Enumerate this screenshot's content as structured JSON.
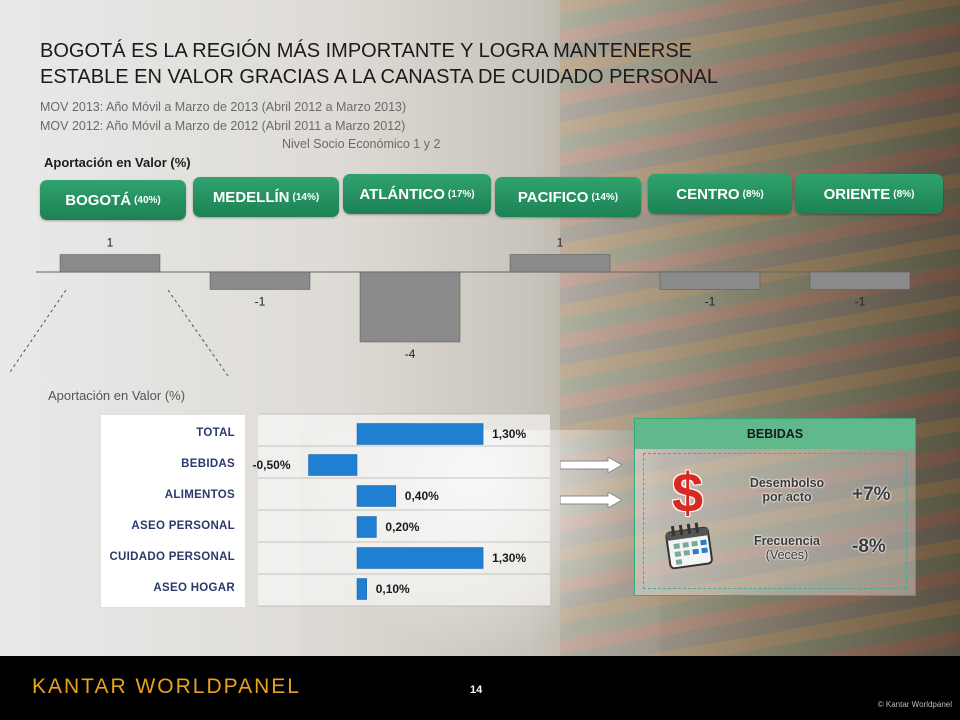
{
  "slide": {
    "title_line1": "BOGOTÁ ES LA REGIÓN MÁS IMPORTANTE Y LOGRA MANTENERSE",
    "title_line2": "ESTABLE EN VALOR GRACIAS A LA CANASTA DE CUIDADO PERSONAL",
    "subtitle_1": "MOV 2013: Año Móvil a Marzo de 2013 (Abril 2012 a Marzo 2013)",
    "subtitle_2": "MOV 2012: Año Móvil a Marzo de 2012 (Abril 2011 a Marzo 2012)",
    "subtitle_3": "Nivel Socio Económico 1 y 2",
    "page_number": "14",
    "logo": "KANTAR WORLDPANEL",
    "copyright": "© Kantar Worldpanel"
  },
  "chart_data": [
    {
      "type": "bar",
      "ylabel": "Aportación en Valor (%)",
      "categories": [
        "BOGOTÁ",
        "MEDELLÍN",
        "ATLÁNTICO",
        "PACIFICO",
        "CENTRO",
        "ORIENTE"
      ],
      "category_shares": [
        "(40%)",
        "(14%)",
        "(17%)",
        "(14%)",
        "(8%)",
        "(8%)"
      ],
      "values": [
        1,
        -1,
        -4,
        1,
        -1,
        -1
      ],
      "value_labels": [
        "1",
        "-1",
        "-4",
        "1",
        "-1",
        "-1"
      ],
      "ylim": [
        -4,
        1
      ],
      "bar_color": "#8a8a8a",
      "pill_color": "#23925f"
    },
    {
      "type": "bar",
      "orientation": "horizontal",
      "ylabel": "Aportación en Valor (%)",
      "categories": [
        "TOTAL",
        "BEBIDAS",
        "ALIMENTOS",
        "ASEO PERSONAL",
        "CUIDADO PERSONAL",
        "ASEO HOGAR"
      ],
      "values": [
        1.3,
        -0.5,
        0.4,
        0.2,
        1.3,
        0.1
      ],
      "value_labels": [
        "1,30%",
        "-0,50%",
        "0,40%",
        "0,20%",
        "1,30%",
        "0,10%"
      ],
      "xlim": [
        -0.5,
        1.3
      ],
      "bar_color": "#1f7fd0"
    }
  ],
  "bebidas_panel": {
    "title": "BEBIDAS",
    "desembolso_label_1": "Desembolso",
    "desembolso_label_2": "por acto",
    "desembolso_value": "+7%",
    "frecuencia_label_1": "Frecuencia",
    "frecuencia_label_2": "(Veces)",
    "frecuencia_value": "-8%",
    "dollar_icon": "dollar-icon",
    "calendar_icon": "calendar-icon"
  }
}
